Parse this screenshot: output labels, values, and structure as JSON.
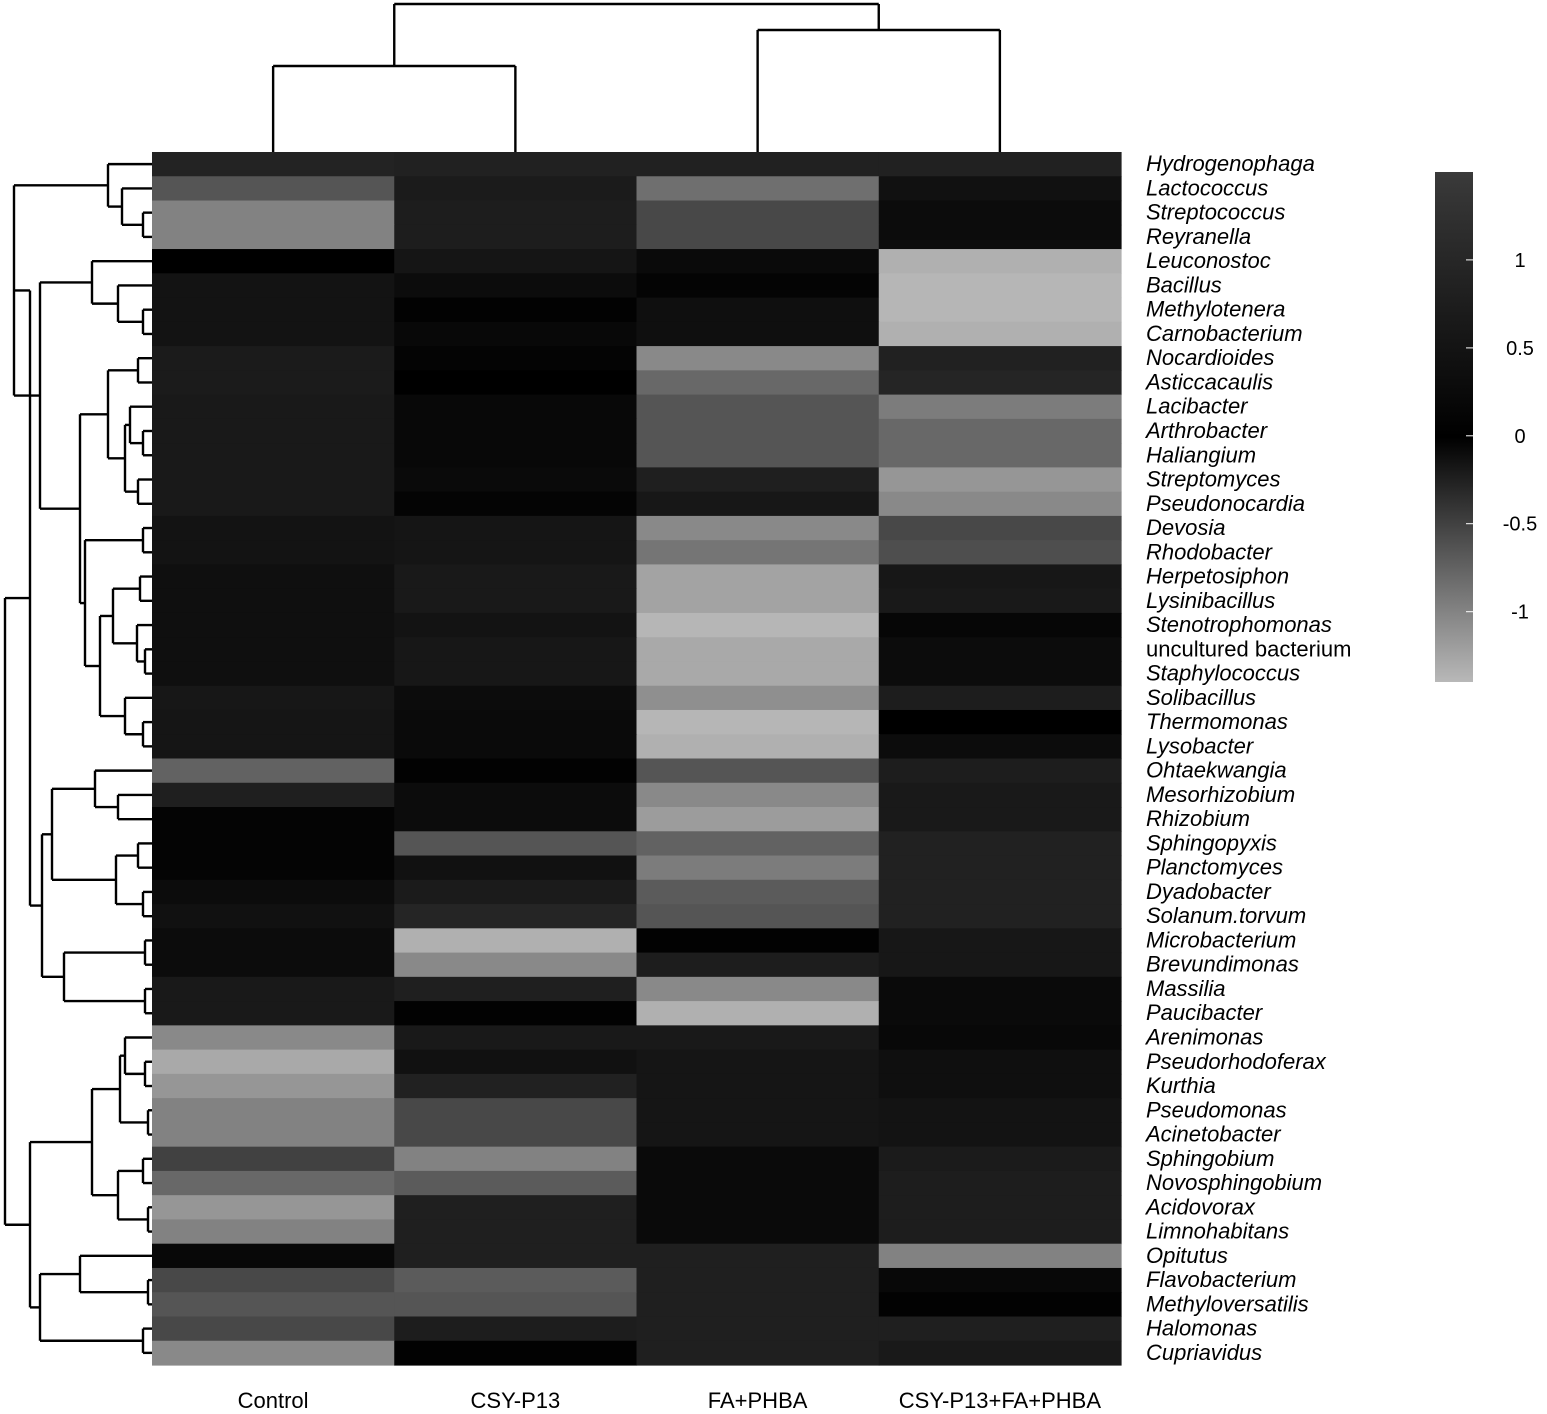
{
  "chart_data": {
    "type": "heatmap",
    "columns": [
      "Control",
      "CSY-P13",
      "FA+PHBA",
      "CSY-P13+FA+PHBA"
    ],
    "rows": [
      {
        "label": "Hydrogenophaga",
        "values": [
          0.85,
          0.8,
          0.8,
          0.8
        ]
      },
      {
        "label": "Lactococcus",
        "values": [
          -0.65,
          0.65,
          -0.85,
          0.4
        ]
      },
      {
        "label": "Streptococcus",
        "values": [
          -1.0,
          0.7,
          -0.55,
          0.3
        ]
      },
      {
        "label": "Reyranella",
        "values": [
          -1.0,
          0.7,
          -0.55,
          0.3
        ]
      },
      {
        "label": "Leuconostoc",
        "values": [
          0.0,
          0.5,
          0.25,
          -1.35
        ]
      },
      {
        "label": "Bacillus",
        "values": [
          0.45,
          0.3,
          0.1,
          -1.45
        ]
      },
      {
        "label": "Methylotenera",
        "values": [
          0.45,
          0.05,
          0.35,
          -1.4
        ]
      },
      {
        "label": "Carnobacterium",
        "values": [
          0.45,
          0.2,
          0.35,
          -1.35
        ]
      },
      {
        "label": "Nocardioides",
        "values": [
          0.65,
          0.1,
          -1.05,
          0.8
        ]
      },
      {
        "label": "Asticcacaulis",
        "values": [
          0.65,
          0.0,
          -0.8,
          0.9
        ]
      },
      {
        "label": "Lacibacter",
        "values": [
          0.6,
          0.2,
          -0.65,
          -0.95
        ]
      },
      {
        "label": "Arthrobacter",
        "values": [
          0.6,
          0.2,
          -0.65,
          -0.8
        ]
      },
      {
        "label": "Haliangium",
        "values": [
          0.6,
          0.2,
          -0.65,
          -0.8
        ]
      },
      {
        "label": "Streptomyces",
        "values": [
          0.6,
          0.25,
          0.75,
          -1.15
        ]
      },
      {
        "label": "Pseudonocardia",
        "values": [
          0.6,
          0.1,
          0.55,
          -1.05
        ]
      },
      {
        "label": "Devosia",
        "values": [
          0.45,
          0.5,
          -1.05,
          -0.55
        ]
      },
      {
        "label": "Rhodobacter",
        "values": [
          0.45,
          0.5,
          -0.9,
          -0.6
        ]
      },
      {
        "label": "Herpetosiphon",
        "values": [
          0.35,
          0.6,
          -1.25,
          0.55
        ]
      },
      {
        "label": "Lysinibacillus",
        "values": [
          0.35,
          0.6,
          -1.25,
          0.6
        ]
      },
      {
        "label": "Stenotrophomonas",
        "values": [
          0.35,
          0.45,
          -1.4,
          0.15
        ]
      },
      {
        "label": "uncultured bacterium",
        "values": [
          0.35,
          0.55,
          -1.3,
          0.3
        ]
      },
      {
        "label": "Staphylococcus",
        "values": [
          0.35,
          0.55,
          -1.3,
          0.3
        ]
      },
      {
        "label": "Solibacillus",
        "values": [
          0.55,
          0.3,
          -1.1,
          0.7
        ]
      },
      {
        "label": "Thermomonas",
        "values": [
          0.5,
          0.25,
          -1.4,
          0.0
        ]
      },
      {
        "label": "Lysobacter",
        "values": [
          0.5,
          0.25,
          -1.35,
          0.3
        ]
      },
      {
        "label": "Ohtaekwangia",
        "values": [
          -0.75,
          0.05,
          -0.65,
          0.7
        ]
      },
      {
        "label": "Mesorhizobium",
        "values": [
          0.75,
          0.3,
          -1.05,
          0.6
        ]
      },
      {
        "label": "Rhizobium",
        "values": [
          0.1,
          0.3,
          -1.2,
          0.6
        ]
      },
      {
        "label": "Sphingopyxis",
        "values": [
          0.1,
          -0.65,
          -0.75,
          0.8
        ]
      },
      {
        "label": "Planctomyces",
        "values": [
          0.1,
          0.4,
          -0.95,
          0.8
        ]
      },
      {
        "label": "Dyadobacter",
        "values": [
          0.3,
          0.65,
          -0.7,
          0.8
        ]
      },
      {
        "label": "Solanum.torvum",
        "values": [
          0.4,
          0.9,
          -0.65,
          0.8
        ]
      },
      {
        "label": "Microbacterium",
        "values": [
          0.3,
          -1.35,
          0.05,
          0.55
        ]
      },
      {
        "label": "Brevundimonas",
        "values": [
          0.3,
          -1.05,
          0.7,
          0.55
        ]
      },
      {
        "label": "Massilia",
        "values": [
          0.6,
          0.75,
          -1.05,
          0.25
        ]
      },
      {
        "label": "Paucibacter",
        "values": [
          0.6,
          0.05,
          -1.35,
          0.25
        ]
      },
      {
        "label": "Arenimonas",
        "values": [
          -1.05,
          0.6,
          0.6,
          0.2
        ]
      },
      {
        "label": "Pseudorhodoferax",
        "values": [
          -1.3,
          0.4,
          0.5,
          0.35
        ]
      },
      {
        "label": "Kurthia",
        "values": [
          -1.15,
          0.8,
          0.5,
          0.35
        ]
      },
      {
        "label": "Pseudomonas",
        "values": [
          -1.0,
          -0.55,
          0.5,
          0.45
        ]
      },
      {
        "label": "Acinetobacter",
        "values": [
          -1.0,
          -0.55,
          0.5,
          0.45
        ]
      },
      {
        "label": "Sphingobium",
        "values": [
          -0.5,
          -1.0,
          0.25,
          0.65
        ]
      },
      {
        "label": "Novosphingobium",
        "values": [
          -0.8,
          -0.7,
          0.25,
          0.7
        ]
      },
      {
        "label": "Acidovorax",
        "values": [
          -1.15,
          0.75,
          0.25,
          0.7
        ]
      },
      {
        "label": "Limnohabitans",
        "values": [
          -1.0,
          0.75,
          0.25,
          0.7
        ]
      },
      {
        "label": "Opitutus",
        "values": [
          0.2,
          0.75,
          0.75,
          -1.0
        ]
      },
      {
        "label": "Flavobacterium",
        "values": [
          -0.55,
          -0.7,
          0.75,
          0.2
        ]
      },
      {
        "label": "Methyloversatilis",
        "values": [
          -0.65,
          -0.65,
          0.75,
          0.05
        ]
      },
      {
        "label": "Halomonas",
        "values": [
          -0.55,
          0.7,
          0.75,
          0.75
        ]
      },
      {
        "label": "Cupriavidus",
        "values": [
          -1.05,
          0.05,
          0.75,
          0.6
        ]
      }
    ],
    "colorbar": {
      "ticks": [
        1,
        0.5,
        0,
        -0.5,
        -1
      ],
      "tick_labels": [
        "1",
        "0.5",
        "0",
        "-0.5",
        "-1"
      ],
      "range": [
        -1.4,
        1.5
      ],
      "colors": {
        "high": "#3a3a3a",
        "mid": "#000000",
        "low": "#b6b6b6"
      }
    },
    "column_dendrogram": true,
    "row_dendrogram": true
  }
}
